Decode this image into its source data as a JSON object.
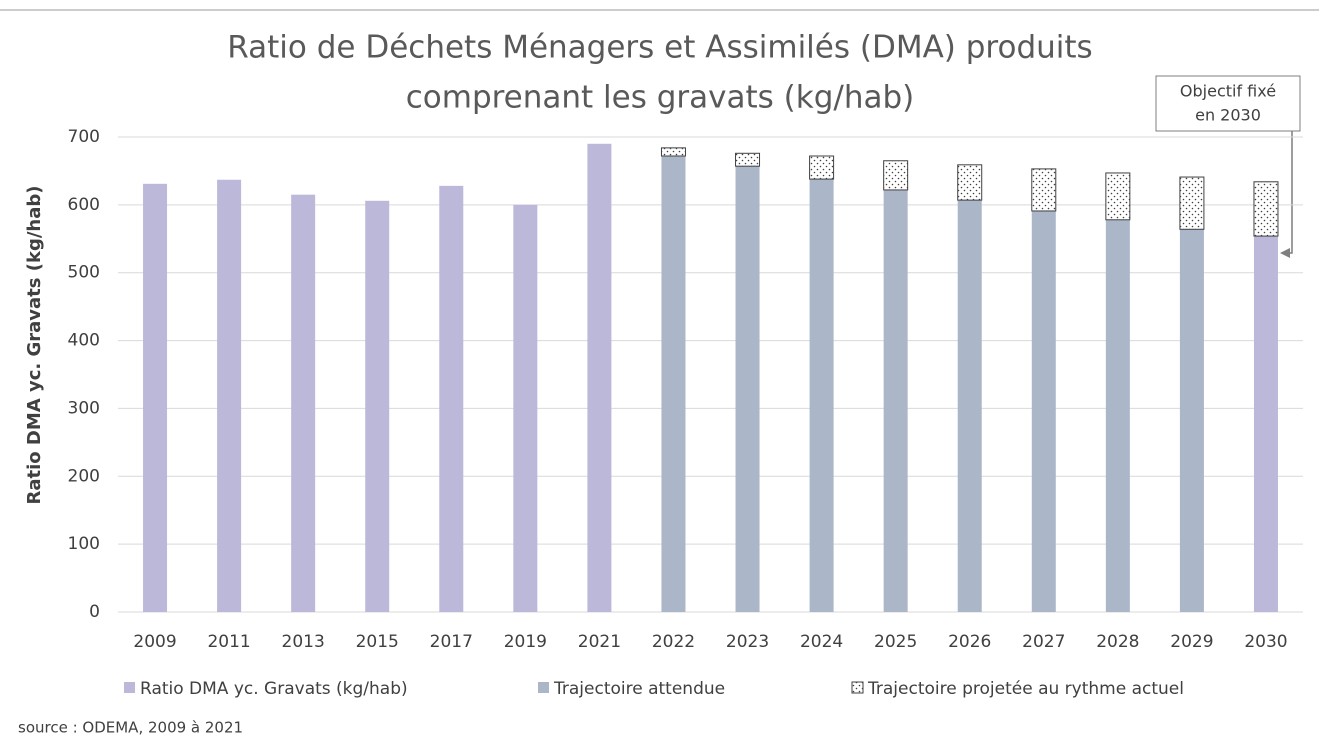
{
  "chart_data": {
    "type": "bar",
    "stacked": true,
    "title": [
      "Ratio de Déchets Ménagers et Assimilés (DMA) produits",
      "comprenant les gravats (kg/hab)"
    ],
    "y_label": "Ratio DMA yc. Gravats (kg/hab)",
    "categories": [
      "2009",
      "2011",
      "2013",
      "2015",
      "2017",
      "2019",
      "2021",
      "2022",
      "2023",
      "2024",
      "2025",
      "2026",
      "2027",
      "2028",
      "2029",
      "2030"
    ],
    "series": [
      {
        "name": "Ratio DMA yc. Gravats (kg/hab)",
        "color": "#bcb8da",
        "pattern": "solid",
        "values": [
          631,
          637,
          615,
          606,
          628,
          600,
          690,
          null,
          null,
          null,
          null,
          null,
          null,
          null,
          null,
          554
        ]
      },
      {
        "name": "Trajectoire attendue",
        "color": "#abb6c8",
        "pattern": "solid",
        "values": [
          null,
          null,
          null,
          null,
          null,
          null,
          null,
          672,
          657,
          638,
          622,
          607,
          591,
          578,
          564,
          null
        ]
      },
      {
        "name": "Trajectoire projetée au rythme actuel",
        "color": "#404040",
        "pattern": "dots",
        "values": [
          null,
          null,
          null,
          null,
          null,
          null,
          null,
          12,
          19,
          34,
          43,
          52,
          62,
          69,
          77,
          80
        ]
      }
    ],
    "ylim": [
      0,
      700
    ],
    "yticks": [
      0,
      100,
      200,
      300,
      400,
      500,
      600,
      700
    ],
    "grid": true,
    "legend": "bottom",
    "annotation": [
      "Objectif fixé",
      "en 2030"
    ],
    "source": "source : ODEMA, 2009 à 2021"
  }
}
